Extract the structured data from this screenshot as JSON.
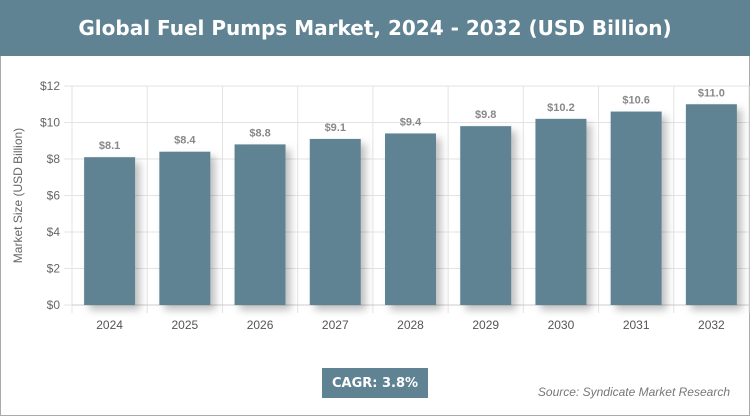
{
  "chart_data": {
    "type": "bar",
    "title": "Global Fuel Pumps Market, 2024 - 2032 (USD Billion)",
    "ylabel": "Market Size (USD Billion)",
    "xlabel": "",
    "categories": [
      "2024",
      "2025",
      "2026",
      "2027",
      "2028",
      "2029",
      "2030",
      "2031",
      "2032"
    ],
    "values": [
      8.1,
      8.4,
      8.8,
      9.1,
      9.4,
      9.8,
      10.2,
      10.6,
      11.0
    ],
    "data_labels": [
      "$8.1",
      "$8.4",
      "$8.8",
      "$9.1",
      "$9.4",
      "$9.8",
      "$10.2",
      "$10.6",
      "$11.0"
    ],
    "ylim": [
      0,
      12
    ],
    "yticks": [
      "$0",
      "$2",
      "$4",
      "$6",
      "$8",
      "$10",
      "$12"
    ],
    "grid": true,
    "bar_color": "#5f8393"
  },
  "cagr": "CAGR: 3.8%",
  "source": "Source: Syndicate Market Research"
}
